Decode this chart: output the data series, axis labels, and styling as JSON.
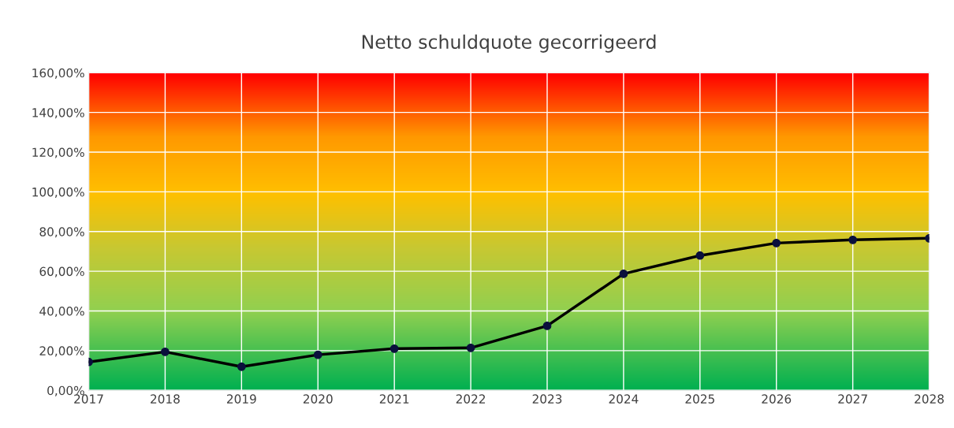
{
  "chart_data": {
    "type": "line",
    "title": "Netto schuldquote gecorrigeerd",
    "x": [
      2017,
      2018,
      2019,
      2020,
      2021,
      2022,
      2023,
      2024,
      2025,
      2026,
      2027,
      2028
    ],
    "series": [
      {
        "color": "#000000",
        "values": [
          14.3,
          19.4,
          11.9,
          17.9,
          21.0,
          21.4,
          32.5,
          58.7,
          67.9,
          74.2,
          75.8,
          76.6
        ]
      }
    ],
    "xlim": [
      2017,
      2028
    ],
    "xticks": [
      2017,
      2018,
      2019,
      2020,
      2021,
      2022,
      2023,
      2024,
      2025,
      2026,
      2027,
      2028
    ],
    "ylim": [
      0,
      160
    ],
    "yticks": [
      {
        "value": 0,
        "label": "0,00%"
      },
      {
        "value": 20,
        "label": "20,00%"
      },
      {
        "value": 40,
        "label": "40,00%"
      },
      {
        "value": 60,
        "label": "60,00%"
      },
      {
        "value": 80,
        "label": "80,00%"
      },
      {
        "value": 100,
        "label": "100,00%"
      },
      {
        "value": 120,
        "label": "120,00%"
      },
      {
        "value": 140,
        "label": "140,00%"
      },
      {
        "value": 160,
        "label": "160,00%"
      }
    ],
    "grid": true,
    "marker": "circle",
    "line_style": "solid",
    "legend": false
  }
}
